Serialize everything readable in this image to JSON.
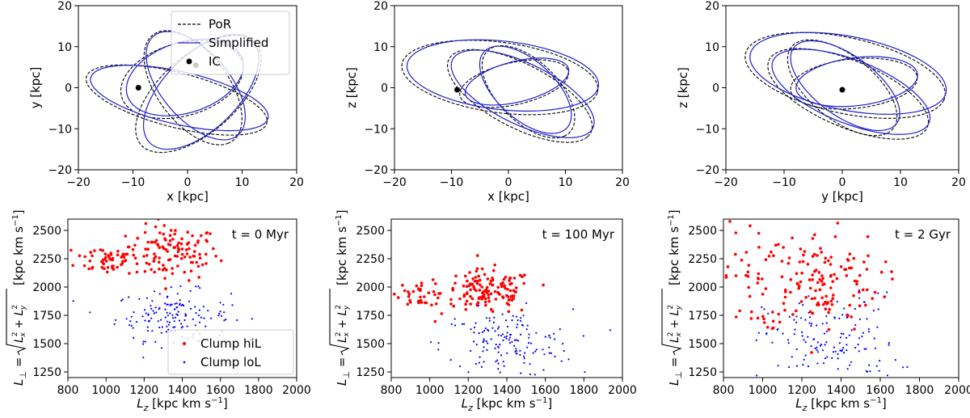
{
  "chart_data": [
    {
      "type": "line",
      "panel": "orbit-xy",
      "xlabel": "x [kpc]",
      "ylabel": "y [kpc]",
      "xlim": [
        -20,
        20
      ],
      "ylim": [
        -20,
        20
      ],
      "xticks": [
        -20,
        -10,
        0,
        10,
        20
      ],
      "yticks": [
        -20,
        -10,
        0,
        10,
        20
      ],
      "legend": {
        "position": "top-right",
        "entries": [
          "PoR",
          "Simplified",
          "IC"
        ]
      },
      "series": [
        {
          "name": "PoR",
          "style": "dashed",
          "color": "#000000",
          "loops": [
            {
              "cx": -2.0,
              "cy": -3.0,
              "a": 17.5,
              "b": 6.5,
              "rot": -20
            },
            {
              "cx": 2.0,
              "cy": -1.5,
              "a": 16.5,
              "b": 8.0,
              "rot": 55
            },
            {
              "cx": 1.0,
              "cy": 0.0,
              "a": 15.0,
              "b": 7.0,
              "rot": -65
            },
            {
              "cx": -1.0,
              "cy": 2.0,
              "a": 12.0,
              "b": 8.5,
              "rot": 30
            }
          ]
        },
        {
          "name": "Simplified",
          "style": "solid",
          "color": "#1f1fd0",
          "loops": [
            {
              "cx": -1.5,
              "cy": -2.5,
              "a": 17.0,
              "b": 6.3,
              "rot": -18
            },
            {
              "cx": 2.5,
              "cy": -1.0,
              "a": 15.8,
              "b": 7.6,
              "rot": 58
            },
            {
              "cx": 1.5,
              "cy": 0.5,
              "a": 14.5,
              "b": 6.8,
              "rot": -62
            },
            {
              "cx": -0.5,
              "cy": 2.5,
              "a": 11.6,
              "b": 8.2,
              "rot": 33
            }
          ]
        },
        {
          "name": "IC",
          "type": "scatter",
          "color": "#000000",
          "points": [
            [
              -9,
              0
            ],
            [
              1.5,
              5.5
            ]
          ]
        }
      ]
    },
    {
      "type": "line",
      "panel": "orbit-xz",
      "xlabel": "x [kpc]",
      "ylabel": "z [kpc]",
      "xlim": [
        -20,
        20
      ],
      "ylim": [
        -20,
        20
      ],
      "xticks": [
        -20,
        -10,
        0,
        10,
        20
      ],
      "yticks": [
        -20,
        -10,
        0,
        10,
        20
      ],
      "series": [
        {
          "name": "PoR",
          "style": "dashed",
          "color": "#000000",
          "loops": [
            {
              "cx": -1.5,
              "cy": 2.5,
              "a": 17.5,
              "b": 8.5,
              "rot": -12
            },
            {
              "cx": 2.0,
              "cy": -2.0,
              "a": 15.5,
              "b": 7.0,
              "rot": -40
            },
            {
              "cx": 3.5,
              "cy": -1.0,
              "a": 12.5,
              "b": 6.0,
              "rot": -60
            },
            {
              "cx": 1.0,
              "cy": 1.0,
              "a": 10.0,
              "b": 5.0,
              "rot": 20
            }
          ]
        },
        {
          "name": "Simplified",
          "style": "solid",
          "color": "#1f1fd0",
          "loops": [
            {
              "cx": -1.0,
              "cy": 3.0,
              "a": 17.0,
              "b": 8.3,
              "rot": -10
            },
            {
              "cx": 2.5,
              "cy": -1.5,
              "a": 15.0,
              "b": 6.8,
              "rot": -38
            },
            {
              "cx": 3.0,
              "cy": -0.5,
              "a": 12.0,
              "b": 5.8,
              "rot": -58
            },
            {
              "cx": 1.5,
              "cy": 1.5,
              "a": 9.6,
              "b": 4.8,
              "rot": 22
            }
          ]
        },
        {
          "name": "IC",
          "type": "scatter",
          "color": "#000000",
          "points": [
            [
              -9,
              -0.5
            ]
          ]
        }
      ]
    },
    {
      "type": "line",
      "panel": "orbit-yz",
      "xlabel": "y [kpc]",
      "ylabel": "z [kpc]",
      "xlim": [
        -20,
        20
      ],
      "ylim": [
        -20,
        20
      ],
      "xticks": [
        -20,
        -10,
        0,
        10,
        20
      ],
      "yticks": [
        -20,
        -10,
        0,
        10,
        20
      ],
      "series": [
        {
          "name": "PoR",
          "style": "dashed",
          "color": "#000000",
          "loops": [
            {
              "cx": 0.5,
              "cy": 3.0,
              "a": 18.0,
              "b": 9.0,
              "rot": -20
            },
            {
              "cx": 1.0,
              "cy": -1.5,
              "a": 16.0,
              "b": 7.5,
              "rot": -35
            },
            {
              "cx": 0.0,
              "cy": 0.0,
              "a": 13.5,
              "b": 6.5,
              "rot": -55
            },
            {
              "cx": 2.0,
              "cy": 1.0,
              "a": 11.0,
              "b": 6.0,
              "rot": 10
            }
          ]
        },
        {
          "name": "Simplified",
          "style": "solid",
          "color": "#1f1fd0",
          "loops": [
            {
              "cx": 1.0,
              "cy": 3.5,
              "a": 17.5,
              "b": 8.8,
              "rot": -18
            },
            {
              "cx": 1.5,
              "cy": -1.0,
              "a": 15.5,
              "b": 7.2,
              "rot": -33
            },
            {
              "cx": 0.5,
              "cy": 0.5,
              "a": 13.0,
              "b": 6.2,
              "rot": -52
            },
            {
              "cx": 2.5,
              "cy": 1.5,
              "a": 10.6,
              "b": 5.8,
              "rot": 12
            }
          ]
        },
        {
          "name": "IC",
          "type": "scatter",
          "color": "#000000",
          "points": [
            [
              0,
              -0.5
            ]
          ]
        }
      ]
    },
    {
      "type": "scatter",
      "panel": "L-plane-0",
      "annotation": "t = 0 Myr",
      "xlabel": "L_z [kpc km s^-1]",
      "ylabel": "L_perp = sqrt(Lx^2 + Ly^2) [kpc km s^-1]",
      "xlim": [
        800,
        2000
      ],
      "ylim": [
        1200,
        2600
      ],
      "xticks": [
        800,
        1000,
        1200,
        1400,
        1600,
        1800,
        2000
      ],
      "yticks": [
        1250,
        1500,
        1750,
        2000,
        2250,
        2500
      ],
      "legend": {
        "position": "bottom-right",
        "entries": [
          "Clump hiL",
          "Clump loL"
        ]
      },
      "series": [
        {
          "name": "Clump hiL",
          "color": "#ff0000",
          "n": 170,
          "clusters": [
            {
              "cx": 1350,
              "cy": 2300,
              "sx": 120,
              "sy": 120,
              "f": 0.7
            },
            {
              "cx": 1000,
              "cy": 2250,
              "sx": 80,
              "sy": 70,
              "f": 0.3
            }
          ]
        },
        {
          "name": "Clump loL",
          "color": "#0000ff",
          "n": 150,
          "clusters": [
            {
              "cx": 1350,
              "cy": 1750,
              "sx": 150,
              "sy": 110,
              "f": 1.0
            }
          ]
        }
      ]
    },
    {
      "type": "scatter",
      "panel": "L-plane-100",
      "annotation": "t = 100 Myr",
      "xlabel": "L_z [kpc km s^-1]",
      "ylabel": "L_perp = sqrt(Lx^2 + Ly^2) [kpc km s^-1]",
      "xlim": [
        800,
        2000
      ],
      "ylim": [
        1200,
        2600
      ],
      "xticks": [
        800,
        1000,
        1200,
        1400,
        1600,
        1800,
        2000
      ],
      "yticks": [
        1250,
        1500,
        1750,
        2000,
        2250,
        2500
      ],
      "series": [
        {
          "name": "Clump hiL",
          "color": "#ff0000",
          "n": 170,
          "clusters": [
            {
              "cx": 1300,
              "cy": 1950,
              "sx": 120,
              "sy": 100,
              "f": 0.8
            },
            {
              "cx": 950,
              "cy": 1950,
              "sx": 60,
              "sy": 60,
              "f": 0.2
            }
          ]
        },
        {
          "name": "Clump loL",
          "color": "#0000ff",
          "n": 150,
          "clusters": [
            {
              "cx": 1400,
              "cy": 1500,
              "sx": 170,
              "sy": 150,
              "f": 1.0
            }
          ]
        }
      ]
    },
    {
      "type": "scatter",
      "panel": "L-plane-2000",
      "annotation": "t = 2 Gyr",
      "xlabel": "L_z [kpc km s^-1]",
      "ylabel": "L_perp = sqrt(Lx^2 + Ly^2) [kpc km s^-1]",
      "xlim": [
        800,
        2000
      ],
      "ylim": [
        1200,
        2600
      ],
      "xticks": [
        800,
        1000,
        1200,
        1400,
        1600,
        1800,
        2000
      ],
      "yticks": [
        1250,
        1500,
        1750,
        2000,
        2250,
        2500
      ],
      "series": [
        {
          "name": "Clump hiL",
          "color": "#ff0000",
          "n": 170,
          "clusters": [
            {
              "cx": 1280,
              "cy": 2050,
              "sx": 160,
              "sy": 220,
              "f": 0.8
            },
            {
              "cx": 950,
              "cy": 2100,
              "sx": 70,
              "sy": 250,
              "f": 0.2
            }
          ]
        },
        {
          "name": "Clump loL",
          "color": "#0000ff",
          "n": 150,
          "clusters": [
            {
              "cx": 1350,
              "cy": 1500,
              "sx": 170,
              "sy": 220,
              "f": 1.0
            }
          ]
        }
      ]
    }
  ]
}
